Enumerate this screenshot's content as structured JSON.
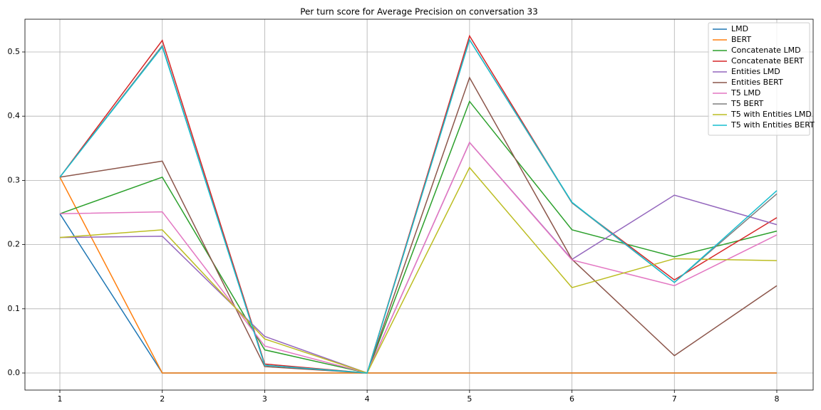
{
  "chart_data": {
    "type": "line",
    "title": "Per turn score for Average Precision on conversation 33",
    "x": [
      1,
      2,
      3,
      4,
      5,
      6,
      7,
      8
    ],
    "xlim": [
      0.659,
      8.355
    ],
    "xticks": [
      1,
      2,
      3,
      4,
      5,
      6,
      7,
      8
    ],
    "ylim": [
      -0.0266,
      0.551
    ],
    "yticks": [
      {
        "value": 0,
        "label": "0.0"
      },
      0.1,
      0.2,
      0.3,
      0.4,
      0.5
    ],
    "grid": true,
    "legend": "upper right",
    "series": [
      {
        "name": "LMD",
        "color": "#1f77b4",
        "values": [
          0.248,
          0,
          0,
          0,
          0,
          0,
          0,
          0
        ]
      },
      {
        "name": "BERT",
        "color": "#ff7f0e",
        "values": [
          0.305,
          0,
          0,
          0,
          0,
          0,
          0,
          0
        ]
      },
      {
        "name": "Concatenate LMD",
        "color": "#2ca02c",
        "values": [
          0.248,
          0.305,
          0.036,
          0,
          0.423,
          0.223,
          0.181,
          0.221
        ]
      },
      {
        "name": "Concatenate BERT",
        "color": "#d62728",
        "values": [
          0.305,
          0.518,
          0.014,
          0,
          0.525,
          0.265,
          0.145,
          0.242
        ]
      },
      {
        "name": "Entities LMD",
        "color": "#9467bd",
        "values": [
          0.211,
          0.213,
          0.057,
          0,
          0.359,
          0.177,
          0.277,
          0.231
        ]
      },
      {
        "name": "Entities BERT",
        "color": "#8c564b",
        "values": [
          0.305,
          0.33,
          0.01,
          0,
          0.46,
          0.177,
          0.027,
          0.136
        ]
      },
      {
        "name": "T5 LMD",
        "color": "#e377c2",
        "values": [
          0.248,
          0.251,
          0.042,
          0,
          0.359,
          0.176,
          0.136,
          0.215
        ]
      },
      {
        "name": "T5 BERT",
        "color": "#7f7f7f",
        "values": [
          0.305,
          0.51,
          0.012,
          0,
          0.519,
          0.265,
          0.141,
          0.279
        ]
      },
      {
        "name": "T5 with Entities LMD",
        "color": "#bcbd22",
        "values": [
          0.211,
          0.223,
          0.053,
          0,
          0.32,
          0.133,
          0.178,
          0.175
        ]
      },
      {
        "name": "T5 with Entities BERT",
        "color": "#17becf",
        "values": [
          0.305,
          0.508,
          0.012,
          0,
          0.519,
          0.266,
          0.141,
          0.284
        ]
      }
    ]
  }
}
